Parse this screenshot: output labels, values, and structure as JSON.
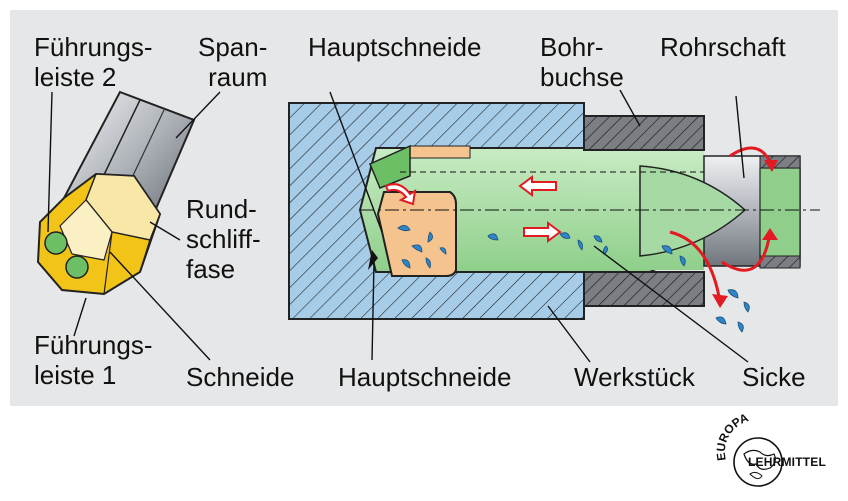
{
  "labels": {
    "fuehrungsleiste_2": "Führungs-\nleiste 2",
    "spanraum": "Span-\nraum",
    "hauptschneide_top": "Hauptschneide",
    "bohrbuchse": "Bohr-\nbuchse",
    "rohrschaft": "Rohrschaft",
    "rundschliff": "Rund-\nschliff-\nfase",
    "fuehrungsleiste_1": "Führungs-\nleiste 1",
    "schneide": "Schneide",
    "hauptschneide_bottom": "Hauptschneide",
    "werkstueck": "Werkstück",
    "sicke": "Sicke"
  },
  "logo": {
    "arc_text": "EUROPA",
    "name": "LEHRMITTEL"
  },
  "colors": {
    "panel": "#e6e7e8",
    "workpiece": "#a6cce8",
    "hatch": "#1a1a1a",
    "bushing": "#7b7f84",
    "tool_green": "#a7d9a4",
    "insert_orange": "#f5c48e",
    "chips_blue": "#2e86c8",
    "arrow_red": "#e21a22",
    "tip_yellow": "#f2c418",
    "shaft_grey": "#b8bcc2"
  }
}
